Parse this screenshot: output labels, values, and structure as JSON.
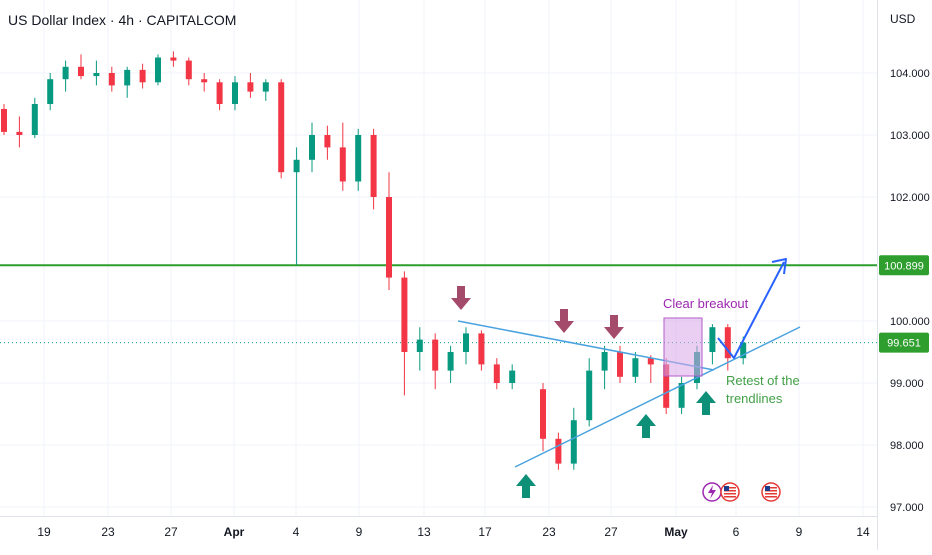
{
  "header": {
    "title": "US Dollar Index · 4h · CAPITALCOM",
    "currency": "USD"
  },
  "colors": {
    "up": "#089981",
    "down": "#f23645",
    "resistance": "#2e9e2e",
    "trendline": "#4aa3df",
    "projection": "#2962ff",
    "arrow_down": "#a44a6b",
    "arrow_up": "#0e8f78",
    "breakout_box": "#d9a7e8",
    "breakout_text": "#9c27b0",
    "retest_text": "#43a047",
    "price_label": "#2e9e2e",
    "grid": "#f0f3fa"
  },
  "chart_data": {
    "type": "candlestick",
    "title": "US Dollar Index · 4h · CAPITALCOM",
    "ylim": [
      96.9,
      104.9
    ],
    "y_ticks": [
      "104.000",
      "103.000",
      "102.000",
      "99.000",
      "98.000",
      "97.000"
    ],
    "x_ticks": [
      "19",
      "23",
      "27",
      "Apr",
      "4",
      "9",
      "13",
      "17",
      "23",
      "27",
      "May",
      "6",
      "9",
      "14"
    ],
    "resistance_level": 100.899,
    "current_price": 99.651,
    "price_labels": [
      "100.899",
      "99.651"
    ],
    "hidden_tick": "100.000",
    "candles": [
      {
        "x": "Mar 16",
        "ohlc": [
          103.42,
          103.5,
          103.0,
          103.05
        ]
      },
      {
        "x": "Mar 17",
        "ohlc": [
          103.05,
          103.3,
          102.8,
          103.0
        ]
      },
      {
        "x": "Mar 18",
        "ohlc": [
          103.0,
          103.6,
          102.95,
          103.5
        ]
      },
      {
        "x": "Mar 19",
        "ohlc": [
          103.5,
          104.0,
          103.4,
          103.9
        ]
      },
      {
        "x": "Mar 20",
        "ohlc": [
          103.9,
          104.2,
          103.7,
          104.1
        ]
      },
      {
        "x": "Mar 21",
        "ohlc": [
          104.1,
          104.3,
          103.9,
          103.95
        ]
      },
      {
        "x": "Mar 22",
        "ohlc": [
          103.95,
          104.2,
          103.8,
          104.0
        ]
      },
      {
        "x": "Mar 23",
        "ohlc": [
          104.0,
          104.1,
          103.7,
          103.8
        ]
      },
      {
        "x": "Mar 24",
        "ohlc": [
          103.8,
          104.1,
          103.6,
          104.05
        ]
      },
      {
        "x": "Mar 25",
        "ohlc": [
          104.05,
          104.15,
          103.75,
          103.85
        ]
      },
      {
        "x": "Mar 26",
        "ohlc": [
          103.85,
          104.3,
          103.8,
          104.25
        ]
      },
      {
        "x": "Mar 27",
        "ohlc": [
          104.25,
          104.35,
          104.1,
          104.2
        ]
      },
      {
        "x": "Mar 28",
        "ohlc": [
          104.2,
          104.25,
          103.8,
          103.9
        ]
      },
      {
        "x": "Mar 29",
        "ohlc": [
          103.9,
          104.0,
          103.7,
          103.85
        ]
      },
      {
        "x": "Mar 30",
        "ohlc": [
          103.85,
          103.9,
          103.4,
          103.5
        ]
      },
      {
        "x": "Mar 31",
        "ohlc": [
          103.5,
          103.95,
          103.4,
          103.85
        ]
      },
      {
        "x": "Apr 1",
        "ohlc": [
          103.85,
          104.0,
          103.6,
          103.7
        ]
      },
      {
        "x": "Apr 2",
        "ohlc": [
          103.7,
          103.9,
          103.55,
          103.85
        ]
      },
      {
        "x": "Apr 3",
        "ohlc": [
          103.85,
          103.9,
          102.3,
          102.4
        ]
      },
      {
        "x": "Apr 4",
        "ohlc": [
          102.4,
          102.8,
          100.9,
          102.6
        ]
      },
      {
        "x": "Apr 5",
        "ohlc": [
          102.6,
          103.2,
          102.4,
          103.0
        ]
      },
      {
        "x": "Apr 6",
        "ohlc": [
          103.0,
          103.15,
          102.6,
          102.8
        ]
      },
      {
        "x": "Apr 7",
        "ohlc": [
          102.8,
          103.2,
          102.1,
          102.25
        ]
      },
      {
        "x": "Apr 8",
        "ohlc": [
          102.25,
          103.1,
          102.1,
          103.0
        ]
      },
      {
        "x": "Apr 9",
        "ohlc": [
          103.0,
          103.1,
          101.8,
          102.0
        ]
      },
      {
        "x": "Apr 10",
        "ohlc": [
          102.0,
          102.4,
          100.5,
          100.7
        ]
      },
      {
        "x": "Apr 11",
        "ohlc": [
          100.7,
          100.8,
          98.8,
          99.5
        ]
      },
      {
        "x": "Apr 12",
        "ohlc": [
          99.5,
          99.9,
          99.2,
          99.7
        ]
      },
      {
        "x": "Apr 13",
        "ohlc": [
          99.7,
          99.8,
          98.9,
          99.2
        ]
      },
      {
        "x": "Apr 14",
        "ohlc": [
          99.2,
          99.6,
          99.0,
          99.5
        ]
      },
      {
        "x": "Apr 15",
        "ohlc": [
          99.5,
          99.9,
          99.3,
          99.8
        ]
      },
      {
        "x": "Apr 16",
        "ohlc": [
          99.8,
          99.85,
          99.2,
          99.3
        ]
      },
      {
        "x": "Apr 17",
        "ohlc": [
          99.3,
          99.4,
          98.9,
          99.0
        ]
      },
      {
        "x": "Apr 18",
        "ohlc": [
          99.0,
          99.3,
          98.9,
          99.2
        ]
      },
      {
        "x": "Apr 20",
        "ohlc": [
          98.9,
          99.0,
          97.9,
          98.1
        ]
      },
      {
        "x": "Apr 21",
        "ohlc": [
          98.1,
          98.2,
          97.6,
          97.7
        ]
      },
      {
        "x": "Apr 22",
        "ohlc": [
          97.7,
          98.6,
          97.6,
          98.4
        ]
      },
      {
        "x": "Apr 23",
        "ohlc": [
          98.4,
          99.4,
          98.3,
          99.2
        ]
      },
      {
        "x": "Apr 24",
        "ohlc": [
          99.2,
          99.6,
          98.9,
          99.5
        ]
      },
      {
        "x": "Apr 25",
        "ohlc": [
          99.5,
          99.6,
          99.0,
          99.1
        ]
      },
      {
        "x": "Apr 26",
        "ohlc": [
          99.1,
          99.5,
          99.0,
          99.4
        ]
      },
      {
        "x": "Apr 27",
        "ohlc": [
          99.4,
          99.45,
          99.0,
          99.3
        ]
      },
      {
        "x": "Apr 28",
        "ohlc": [
          99.3,
          99.4,
          98.5,
          98.6
        ]
      },
      {
        "x": "Apr 29",
        "ohlc": [
          98.6,
          99.1,
          98.5,
          99.0
        ]
      },
      {
        "x": "Apr 30",
        "ohlc": [
          99.0,
          99.6,
          98.9,
          99.5
        ]
      },
      {
        "x": "May 1",
        "ohlc": [
          99.5,
          99.95,
          99.3,
          99.9
        ]
      },
      {
        "x": "May 2",
        "ohlc": [
          99.9,
          99.95,
          99.2,
          99.4
        ]
      },
      {
        "x": "May 3",
        "ohlc": [
          99.4,
          99.75,
          99.3,
          99.65
        ]
      }
    ]
  },
  "annotations": {
    "breakout_label": "Clear breakout",
    "retest_label_line1": "Retest of the",
    "retest_label_line2": "trendlines"
  }
}
